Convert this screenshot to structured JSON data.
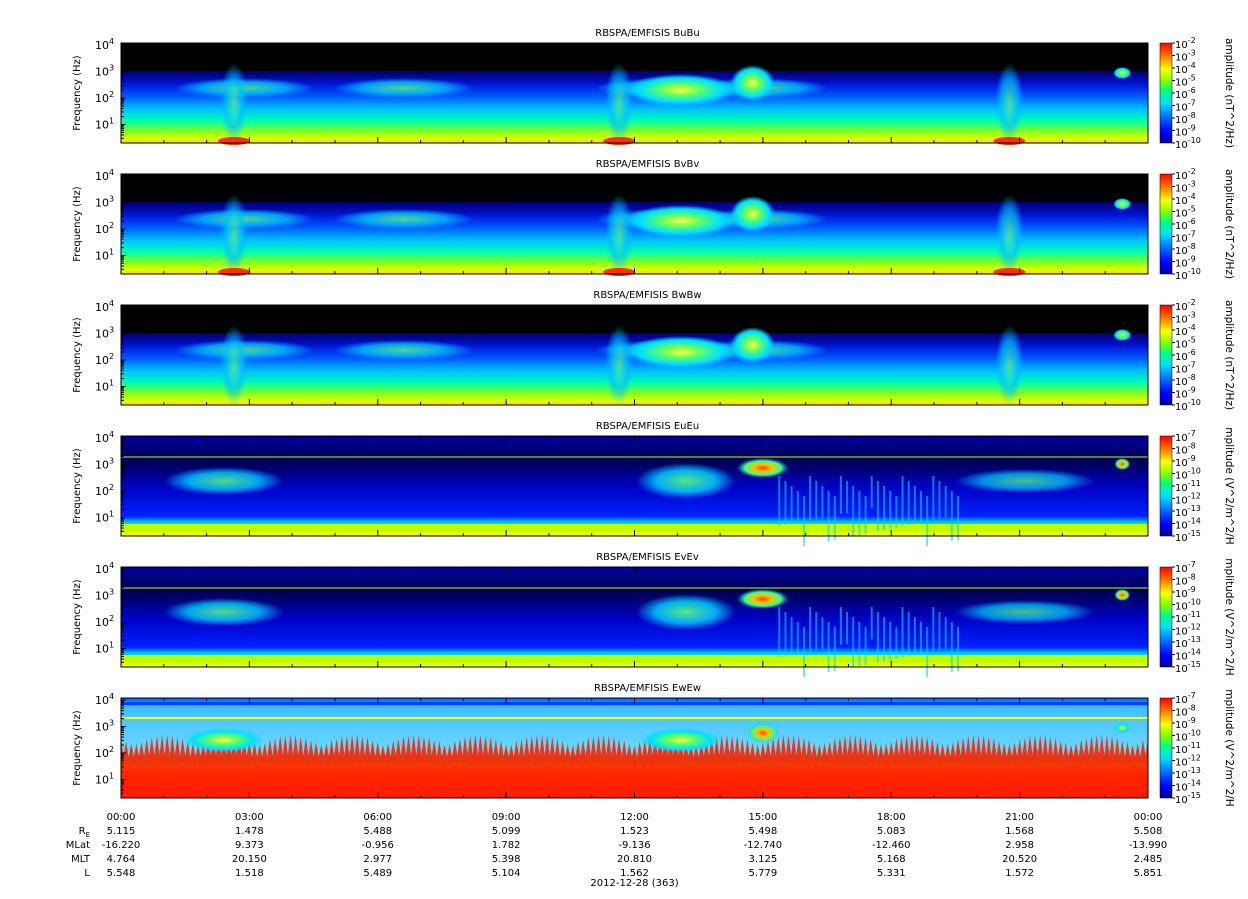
{
  "chart_data": [
    {
      "type": "heatmap",
      "title": "RBSPA/EMFISIS  BuBu",
      "ylabel": "Frequency (Hz)",
      "yscale": "log",
      "ylim": [
        2,
        12000
      ],
      "yticks": [
        {
          "base": "10",
          "exp": "1",
          "v": 10
        },
        {
          "base": "10",
          "exp": "2",
          "v": 100
        },
        {
          "base": "10",
          "exp": "3",
          "v": 1000
        },
        {
          "base": "10",
          "exp": "4",
          "v": 10000
        }
      ],
      "colorbar": {
        "label": "amplitude (nT^2/Hz)",
        "ticks": [
          "-2",
          "-3",
          "-4",
          "-5",
          "-6",
          "-7",
          "-8",
          "-9",
          "-10"
        ],
        "range_exp": [
          -10,
          -2
        ]
      },
      "colors": [
        "#0000a0",
        "#0000ff",
        "#0080ff",
        "#00e0ff",
        "#00ff80",
        "#80ff00",
        "#ffff00",
        "#ff8000",
        "#ff0000"
      ],
      "kind": "B"
    },
    {
      "type": "heatmap",
      "title": "RBSPA/EMFISIS  BvBv",
      "ylabel": "Frequency (Hz)",
      "yscale": "log",
      "ylim": [
        2,
        12000
      ],
      "yticks": [
        {
          "base": "10",
          "exp": "1",
          "v": 10
        },
        {
          "base": "10",
          "exp": "2",
          "v": 100
        },
        {
          "base": "10",
          "exp": "3",
          "v": 1000
        },
        {
          "base": "10",
          "exp": "4",
          "v": 10000
        }
      ],
      "colorbar": {
        "label": "amplitude (nT^2/Hz)",
        "ticks": [
          "-2",
          "-3",
          "-4",
          "-5",
          "-6",
          "-7",
          "-8",
          "-9",
          "-10"
        ],
        "range_exp": [
          -10,
          -2
        ]
      },
      "kind": "B"
    },
    {
      "type": "heatmap",
      "title": "RBSPA/EMFISIS  BwBw",
      "ylabel": "Frequency (Hz)",
      "yscale": "log",
      "ylim": [
        2,
        12000
      ],
      "yticks": [
        {
          "base": "10",
          "exp": "1",
          "v": 10
        },
        {
          "base": "10",
          "exp": "2",
          "v": 100
        },
        {
          "base": "10",
          "exp": "3",
          "v": 1000
        },
        {
          "base": "10",
          "exp": "4",
          "v": 10000
        }
      ],
      "colorbar": {
        "label": "amplitude (nT^2/Hz)",
        "ticks": [
          "-2",
          "-3",
          "-4",
          "-5",
          "-6",
          "-7",
          "-8",
          "-9",
          "-10"
        ],
        "range_exp": [
          -10,
          -2
        ]
      },
      "kind": "Bw"
    },
    {
      "type": "heatmap",
      "title": "RBSPA/EMFISIS  EuEu",
      "ylabel": "Frequency (Hz)",
      "yscale": "log",
      "ylim": [
        2,
        12000
      ],
      "yticks": [
        {
          "base": "10",
          "exp": "1",
          "v": 10
        },
        {
          "base": "10",
          "exp": "2",
          "v": 100
        },
        {
          "base": "10",
          "exp": "3",
          "v": 1000
        },
        {
          "base": "10",
          "exp": "4",
          "v": 10000
        }
      ],
      "colorbar": {
        "label": "mplitude (V^2/m^2/H",
        "ticks": [
          "-7",
          "-8",
          "-9",
          "-10",
          "-11",
          "-12",
          "-13",
          "-14",
          "-15"
        ],
        "range_exp": [
          -15,
          -7
        ]
      },
      "kind": "E"
    },
    {
      "type": "heatmap",
      "title": "RBSPA/EMFISIS  EvEv",
      "ylabel": "Frequency (Hz)",
      "yscale": "log",
      "ylim": [
        2,
        12000
      ],
      "yticks": [
        {
          "base": "10",
          "exp": "1",
          "v": 10
        },
        {
          "base": "10",
          "exp": "2",
          "v": 100
        },
        {
          "base": "10",
          "exp": "3",
          "v": 1000
        },
        {
          "base": "10",
          "exp": "4",
          "v": 10000
        }
      ],
      "colorbar": {
        "label": "mplitude (V^2/m^2/H",
        "ticks": [
          "-7",
          "-8",
          "-9",
          "-10",
          "-11",
          "-12",
          "-13",
          "-14",
          "-15"
        ],
        "range_exp": [
          -15,
          -7
        ]
      },
      "kind": "E"
    },
    {
      "type": "heatmap",
      "title": "RBSPA/EMFISIS  EwEw",
      "ylabel": "Frequency (Hz)",
      "yscale": "log",
      "ylim": [
        2,
        12000
      ],
      "yticks": [
        {
          "base": "10",
          "exp": "1",
          "v": 10
        },
        {
          "base": "10",
          "exp": "2",
          "v": 100
        },
        {
          "base": "10",
          "exp": "3",
          "v": 1000
        },
        {
          "base": "10",
          "exp": "4",
          "v": 10000
        }
      ],
      "colorbar": {
        "label": "mplitude (V^2/m^2/H",
        "ticks": [
          "-7",
          "-8",
          "-9",
          "-10",
          "-11",
          "-12",
          "-13",
          "-14",
          "-15"
        ],
        "range_exp": [
          -15,
          -7
        ]
      },
      "kind": "Ew"
    }
  ],
  "x_axis": {
    "ticks": [
      "00:00",
      "03:00",
      "06:00",
      "09:00",
      "12:00",
      "15:00",
      "18:00",
      "21:00",
      "00:00"
    ],
    "minor_per_major": 3
  },
  "ephemeris": {
    "labels": [
      "R",
      "MLat",
      "MLT",
      "L"
    ],
    "r_subscript": "E",
    "rows": [
      [
        "5.115",
        "1.478",
        "5.488",
        "5.099",
        "1.523",
        "5.498",
        "5.083",
        "1.568",
        "5.508"
      ],
      [
        "-16.220",
        "9.373",
        "-0.956",
        "1.782",
        "-9.136",
        "-12.740",
        "-12.460",
        "2.958",
        "-13.990"
      ],
      [
        "4.764",
        "20.150",
        "2.977",
        "5.398",
        "20.810",
        "3.125",
        "5.168",
        "20.520",
        "2.485"
      ],
      [
        "5.548",
        "1.518",
        "5.489",
        "5.104",
        "1.562",
        "5.779",
        "5.331",
        "1.572",
        "5.851"
      ]
    ]
  },
  "date_label": "2012-12-28 (363)"
}
